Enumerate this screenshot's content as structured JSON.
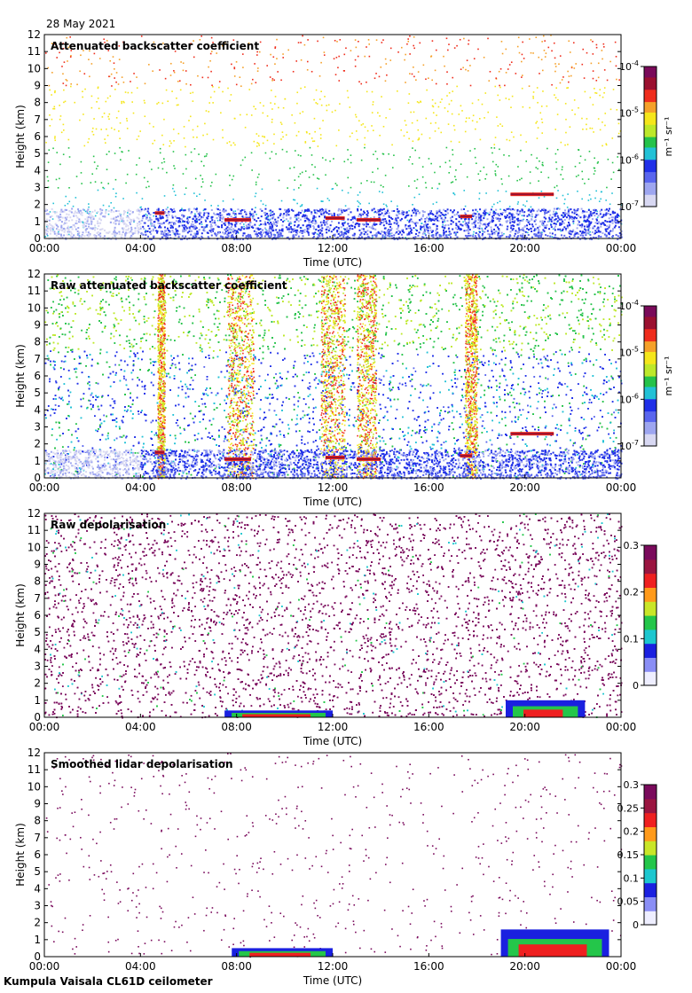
{
  "date": "28 May 2021",
  "footer": "Kumpula Vaisala CL61D ceilometer",
  "chart_data": [
    {
      "type": "heatmap",
      "title": "Attenuated backscatter coefficient",
      "xlabel": "Time (UTC)",
      "ylabel": "Height (km)",
      "x_ticks": [
        "00:00",
        "04:00",
        "08:00",
        "12:00",
        "16:00",
        "20:00",
        "00:00"
      ],
      "y_ticks": [
        "0",
        "1",
        "2",
        "3",
        "4",
        "5",
        "6",
        "7",
        "8",
        "9",
        "10",
        "11",
        "12"
      ],
      "ylim": [
        0,
        12
      ],
      "colorbar": {
        "label": "m⁻¹ sr⁻¹",
        "scale": "log",
        "ticks": [
          {
            "base": "10",
            "exp": "-4"
          },
          {
            "base": "10",
            "exp": "-5"
          },
          {
            "base": "10",
            "exp": "-6"
          },
          {
            "base": "10",
            "exp": "-7"
          }
        ]
      },
      "features": {
        "noise": "sparse",
        "boundary_layer_top_km": 1.8,
        "cloud_layers": [
          {
            "start_h": 4.6,
            "end_h": 5.0,
            "height_km": 1.5
          },
          {
            "start_h": 7.5,
            "end_h": 8.6,
            "height_km": 1.1
          },
          {
            "start_h": 11.7,
            "end_h": 12.5,
            "height_km": 1.2
          },
          {
            "start_h": 13.0,
            "end_h": 14.0,
            "height_km": 1.1
          },
          {
            "start_h": 17.3,
            "end_h": 17.8,
            "height_km": 1.3
          },
          {
            "start_h": 19.4,
            "end_h": 21.2,
            "height_km": 2.6
          }
        ]
      }
    },
    {
      "type": "heatmap",
      "title": "Raw attenuated backscatter coefficient",
      "xlabel": "Time (UTC)",
      "ylabel": "Height (km)",
      "x_ticks": [
        "00:00",
        "04:00",
        "08:00",
        "12:00",
        "16:00",
        "20:00",
        "00:00"
      ],
      "y_ticks": [
        "0",
        "1",
        "2",
        "3",
        "4",
        "5",
        "6",
        "7",
        "8",
        "9",
        "10",
        "11",
        "12"
      ],
      "ylim": [
        0,
        12
      ],
      "colorbar": {
        "label": "m⁻¹ sr⁻¹",
        "scale": "log",
        "ticks": [
          {
            "base": "10",
            "exp": "-4"
          },
          {
            "base": "10",
            "exp": "-5"
          },
          {
            "base": "10",
            "exp": "-6"
          },
          {
            "base": "10",
            "exp": "-7"
          }
        ]
      },
      "features": {
        "noise": "dense",
        "bright_columns_h": [
          [
            7.6,
            8.7
          ],
          [
            11.5,
            12.5
          ],
          [
            13.0,
            13.8
          ],
          [
            4.7,
            5.0
          ],
          [
            17.5,
            18.0
          ]
        ],
        "cloud_layers": [
          {
            "start_h": 4.6,
            "end_h": 5.0,
            "height_km": 1.5
          },
          {
            "start_h": 7.5,
            "end_h": 8.6,
            "height_km": 1.1
          },
          {
            "start_h": 11.7,
            "end_h": 12.5,
            "height_km": 1.2
          },
          {
            "start_h": 13.0,
            "end_h": 14.0,
            "height_km": 1.1
          },
          {
            "start_h": 17.3,
            "end_h": 17.8,
            "height_km": 1.3
          },
          {
            "start_h": 19.4,
            "end_h": 21.2,
            "height_km": 2.6
          }
        ]
      }
    },
    {
      "type": "heatmap",
      "title": "Raw depolarisation",
      "xlabel": "Time (UTC)",
      "ylabel": "Height (km)",
      "x_ticks": [
        "00:00",
        "04:00",
        "08:00",
        "12:00",
        "16:00",
        "20:00",
        "00:00"
      ],
      "y_ticks": [
        "0",
        "1",
        "2",
        "3",
        "4",
        "5",
        "6",
        "7",
        "8",
        "9",
        "10",
        "11",
        "12"
      ],
      "ylim": [
        0,
        12
      ],
      "colorbar": {
        "scale": "linear",
        "ticks": [
          "0.3",
          "0.2",
          "0.1",
          "0"
        ]
      },
      "features": {
        "noise": "saturated",
        "high_depol_regions": [
          {
            "start_h": 7.5,
            "end_h": 12.0,
            "top_km": 0.4
          },
          {
            "start_h": 19.2,
            "end_h": 22.5,
            "top_km": 1.0
          }
        ]
      }
    },
    {
      "type": "heatmap",
      "title": "Smoothed lidar depolarisation",
      "xlabel": "Time (UTC)",
      "ylabel": "Height (km)",
      "x_ticks": [
        "00:00",
        "04:00",
        "08:00",
        "12:00",
        "16:00",
        "20:00",
        "00:00"
      ],
      "y_ticks": [
        "0",
        "1",
        "2",
        "3",
        "4",
        "5",
        "6",
        "7",
        "8",
        "9",
        "10",
        "11",
        "12"
      ],
      "ylim": [
        0,
        12
      ],
      "colorbar": {
        "scale": "linear",
        "ticks": [
          "0.3",
          "0.25",
          "0.2",
          "0.15",
          "0.1",
          "0.05",
          "0"
        ]
      },
      "features": {
        "noise": "sparse_purple",
        "high_depol_regions": [
          {
            "start_h": 7.8,
            "end_h": 12.0,
            "top_km": 0.5
          },
          {
            "start_h": 19.0,
            "end_h": 23.5,
            "top_km": 1.6
          }
        ]
      }
    }
  ]
}
